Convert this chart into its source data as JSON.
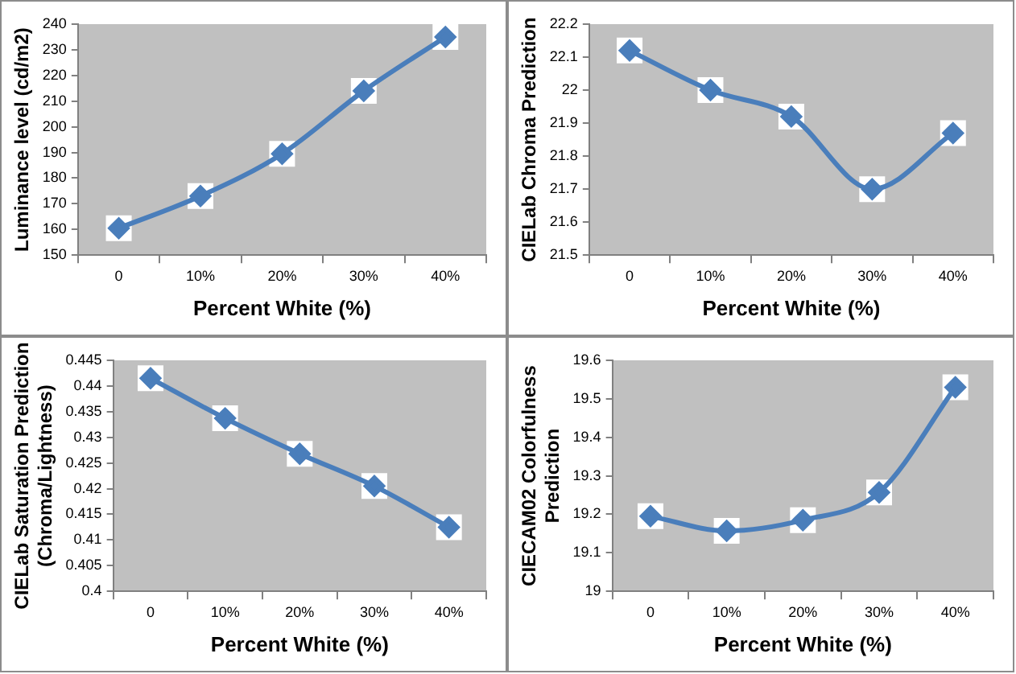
{
  "chart_data": [
    {
      "type": "line",
      "xlabel": "Percent White (%)",
      "ylabel": "Luminance level (cd/m2)",
      "categories": [
        "0",
        "10%",
        "20%",
        "30%",
        "40%"
      ],
      "marker": "diamond",
      "ylim": [
        150,
        240
      ],
      "yticks": [
        150,
        160,
        170,
        180,
        190,
        200,
        210,
        220,
        230,
        240
      ],
      "series": [
        {
          "color": "#4a7ebb",
          "values": [
            160.5,
            173,
            189.5,
            214,
            235
          ]
        }
      ]
    },
    {
      "type": "line",
      "xlabel": "Percent White (%)",
      "ylabel": "CIELab Chroma Prediction",
      "categories": [
        "0",
        "10%",
        "20%",
        "30%",
        "40%"
      ],
      "marker": "diamond",
      "ylim": [
        21.5,
        22.2
      ],
      "yticks": [
        21.5,
        21.6,
        21.7,
        21.8,
        21.9,
        22,
        22.1,
        22.2
      ],
      "series": [
        {
          "color": "#4a7ebb",
          "values": [
            22.12,
            22.0,
            21.92,
            21.7,
            21.87
          ]
        }
      ]
    },
    {
      "type": "line",
      "xlabel": "Percent White (%)",
      "ylabel": "CIELab Saturation Prediction (Chroma/Lightness)",
      "categories": [
        "0",
        "10%",
        "20%",
        "30%",
        "40%"
      ],
      "marker": "diamond",
      "ylim": [
        0.4,
        0.445
      ],
      "yticks": [
        0.4,
        0.405,
        0.41,
        0.415,
        0.42,
        0.425,
        0.43,
        0.435,
        0.44,
        0.445
      ],
      "series": [
        {
          "color": "#4a7ebb",
          "values": [
            0.4415,
            0.4337,
            0.4268,
            0.4205,
            0.4125
          ]
        }
      ]
    },
    {
      "type": "line",
      "xlabel": "Percent White (%)",
      "ylabel": "CIECAM02 Colorfulness Prediction",
      "categories": [
        "0",
        "10%",
        "20%",
        "30%",
        "40%"
      ],
      "marker": "diamond",
      "ylim": [
        19,
        19.6
      ],
      "yticks": [
        19,
        19.1,
        19.2,
        19.3,
        19.4,
        19.5,
        19.6
      ],
      "series": [
        {
          "color": "#4a7ebb",
          "values": [
            19.195,
            19.157,
            19.185,
            19.257,
            19.53
          ]
        }
      ]
    }
  ]
}
